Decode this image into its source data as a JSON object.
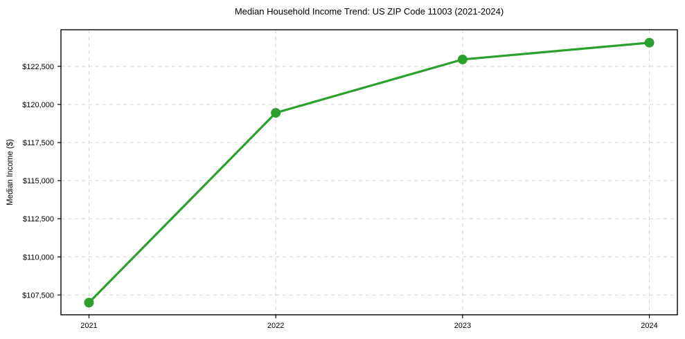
{
  "chart_data": {
    "type": "line",
    "title": "Median Household Income Trend: US ZIP Code 11003 (2021-2024)",
    "xlabel": "",
    "ylabel": "Median Income ($)",
    "x": [
      2021,
      2022,
      2023,
      2024
    ],
    "series": [
      {
        "name": "Median household income",
        "values": [
          107000,
          119450,
          122950,
          124050
        ],
        "color": "#2ca02c"
      }
    ],
    "xticks": [
      {
        "value": 2021,
        "label": "2021"
      },
      {
        "value": 2022,
        "label": "2022"
      },
      {
        "value": 2023,
        "label": "2023"
      },
      {
        "value": 2024,
        "label": "2024"
      }
    ],
    "yticks": [
      {
        "value": 107500,
        "label": "$107,500"
      },
      {
        "value": 110000,
        "label": "$110,000"
      },
      {
        "value": 112500,
        "label": "$112,500"
      },
      {
        "value": 115000,
        "label": "$115,000"
      },
      {
        "value": 117500,
        "label": "$117,500"
      },
      {
        "value": 120000,
        "label": "$120,000"
      },
      {
        "value": 122500,
        "label": "$122,500"
      }
    ],
    "xlim": [
      2020.85,
      2024.15
    ],
    "ylim": [
      106200,
      124900
    ],
    "grid": true,
    "grid_style": "dashed",
    "legend_position": "none",
    "colors": {
      "line": "#2ca02c",
      "marker": "#2ca02c",
      "grid": "#d4d4d4",
      "spine": "#000000",
      "text": "#000000"
    }
  }
}
